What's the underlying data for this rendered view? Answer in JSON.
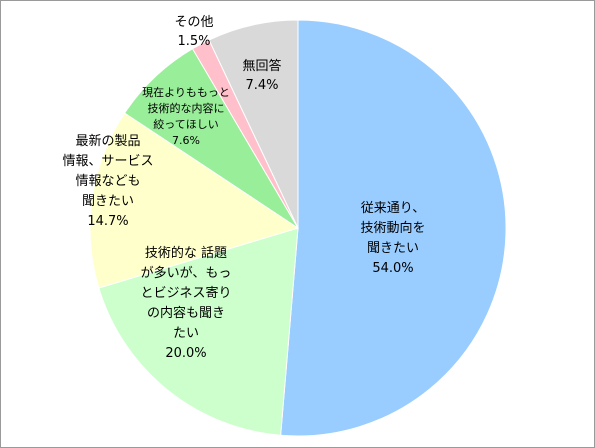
{
  "chart_data": {
    "type": "pie",
    "start_angle_deg": 0,
    "direction": "clockwise",
    "slices": [
      {
        "label": [
          "従来通り、",
          "技術動向を",
          "聞きたい"
        ],
        "value_label": "54.0%",
        "value": 54.0,
        "color": "#99ccff"
      },
      {
        "label": [
          "技術的な 話題",
          "が多いが、もっ",
          "とビジネス寄り",
          "の内容も聞き",
          "たい"
        ],
        "value_label": "20.0%",
        "value": 20.0,
        "color": "#ccffcc"
      },
      {
        "label": [
          "最新の製品",
          "情報、サービス",
          "情報なども",
          "聞きたい"
        ],
        "value_label": "14.7%",
        "value": 14.7,
        "color": "#ffffcc"
      },
      {
        "label": [
          "現在よりももっと",
          "技術的な内容に",
          "絞ってほしい"
        ],
        "value_label": "7.6%",
        "value": 7.6,
        "color": "#99ee99"
      },
      {
        "label": [
          "その他"
        ],
        "value_label": "1.5%",
        "value": 1.5,
        "color": "#ffc0cb"
      },
      {
        "label": [
          "無回答"
        ],
        "value_label": "7.4%",
        "value": 7.4,
        "color": "#d9d9d9"
      }
    ]
  }
}
